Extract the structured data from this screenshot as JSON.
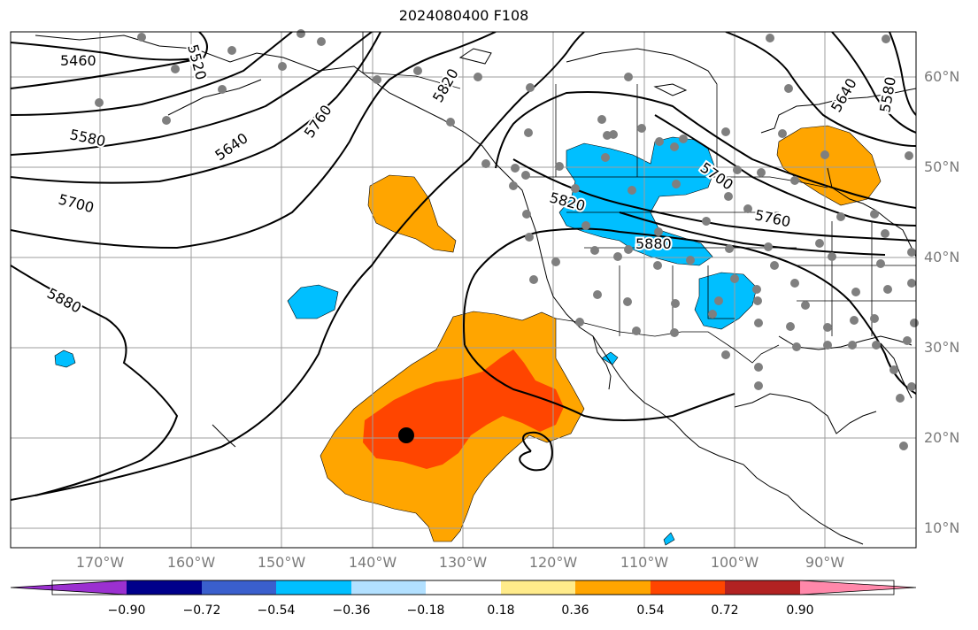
{
  "title": "2024080400 F108",
  "lat_labels": [
    "60°N",
    "50°N",
    "40°N",
    "30°N",
    "20°N",
    "10°N"
  ],
  "lon_labels": [
    "170°W",
    "160°W",
    "150°W",
    "140°W",
    "130°W",
    "120°W",
    "110°W",
    "100°W",
    "90°W"
  ],
  "contour_labels": [
    "5460",
    "5520",
    "5580",
    "5640",
    "5700",
    "5760",
    "5820",
    "5880",
    "5880",
    "5820",
    "5760",
    "5700",
    "5640",
    "5580"
  ],
  "colorbar": {
    "colors": [
      "#9b30d0",
      "#00008b",
      "#3a5fcd",
      "#00bfff",
      "#b2e0ff",
      "#ffffff",
      "#ffeb8a",
      "#ffa500",
      "#ff4500",
      "#b22222",
      "#ff88aa"
    ],
    "ticks": [
      "−0.90",
      "−0.72",
      "−0.54",
      "−0.36",
      "−0.18",
      "0.18",
      "0.36",
      "0.54",
      "0.72",
      "0.90"
    ]
  },
  "storm_marker": "black-dot",
  "station_marker": "gray-dot"
}
